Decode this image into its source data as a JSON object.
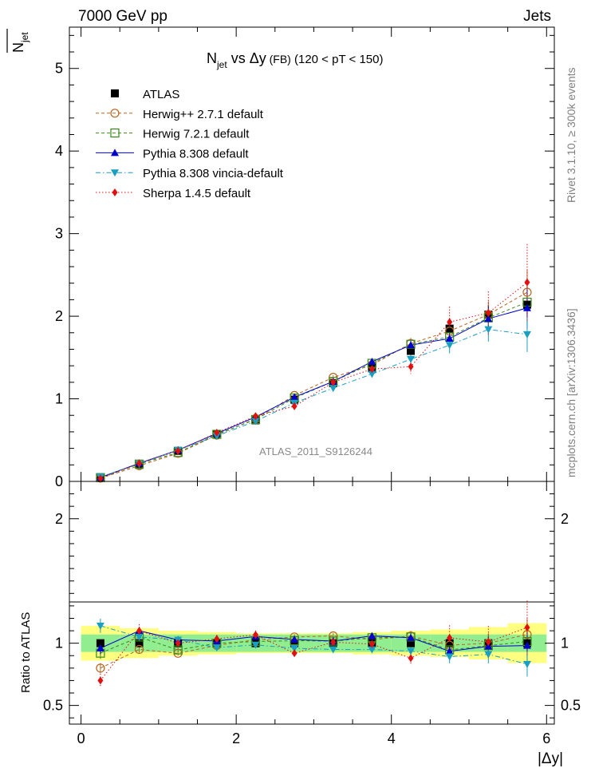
{
  "header": {
    "left": "7000 GeV pp",
    "right": "Jets"
  },
  "side_labels": {
    "rivet": "Rivet 3.1.10, ≥ 300k events",
    "mcplots": "mcplots.cern.ch [arXiv:1306.3436]"
  },
  "main_title": {
    "prefix": "N",
    "sub": "jet",
    "mid": " vs Δy",
    "small": " (FB)",
    "tail": " (120 < pT < 150)"
  },
  "ylabel_main": {
    "main": "N",
    "sub": "jet"
  },
  "ylabel_ratio": "Ratio to ATLAS",
  "xlabel": "|Δy|",
  "watermark": "ATLAS_2011_S9126244",
  "chart_data": {
    "type": "line",
    "x": [
      0.25,
      0.75,
      1.25,
      1.75,
      2.25,
      2.75,
      3.25,
      3.75,
      4.25,
      4.75,
      5.25,
      5.75
    ],
    "xlim": [
      -0.15,
      6.1
    ],
    "xticks": [
      0,
      2,
      4,
      6
    ],
    "main": {
      "ylim": [
        0,
        5.5
      ],
      "yticks": [
        0,
        1,
        2,
        3,
        4,
        5
      ]
    },
    "ratio": {
      "ylim": [
        0.35,
        2.3
      ],
      "yticks": [
        0.5,
        1,
        2
      ],
      "band_inner": 0.07,
      "band_outer": [
        0.14,
        0.12,
        0.1,
        0.09,
        0.08,
        0.08,
        0.08,
        0.09,
        0.1,
        0.11,
        0.13,
        0.16
      ]
    },
    "series": [
      {
        "name": "ATLAS",
        "legend": "ATLAS",
        "color": "#000000",
        "marker": "square-filled",
        "line": "none",
        "values": [
          0.05,
          0.2,
          0.37,
          0.57,
          0.74,
          0.99,
          1.19,
          1.37,
          1.58,
          1.85,
          2.02,
          2.14
        ]
      },
      {
        "name": "Herwig++ 2.7.1 default",
        "legend": "Herwig++ 2.7.1 default",
        "color": "#b8651e",
        "marker": "circle-open",
        "line": "dashed",
        "values": [
          0.04,
          0.19,
          0.34,
          0.56,
          0.76,
          1.04,
          1.26,
          1.41,
          1.67,
          1.82,
          2.02,
          2.29
        ]
      },
      {
        "name": "Herwig 7.2.1 default",
        "legend": "Herwig 7.2.1 default",
        "color": "#3a8a1b",
        "marker": "square-open",
        "line": "dashed",
        "values": [
          0.046,
          0.21,
          0.35,
          0.57,
          0.75,
          1.01,
          1.21,
          1.43,
          1.66,
          1.75,
          1.98,
          2.17
        ]
      },
      {
        "name": "Pythia 8.308 default",
        "legend": "Pythia 8.308 default",
        "color": "#0000cc",
        "marker": "triangle-up",
        "line": "solid",
        "values": [
          0.048,
          0.22,
          0.38,
          0.58,
          0.78,
          1.02,
          1.21,
          1.45,
          1.65,
          1.73,
          1.97,
          2.1
        ]
      },
      {
        "name": "Pythia 8.308 vincia-default",
        "legend": "Pythia 8.308 vincia-default",
        "color": "#1a9ec2",
        "marker": "triangle-down",
        "line": "dashdot",
        "values": [
          0.057,
          0.21,
          0.38,
          0.55,
          0.73,
          0.95,
          1.13,
          1.3,
          1.48,
          1.65,
          1.84,
          1.78
        ]
      },
      {
        "name": "Sherpa 1.4.5 default",
        "legend": "Sherpa 1.4.5 default",
        "color": "#e01010",
        "marker": "diamond",
        "line": "dotted",
        "values": [
          0.035,
          0.22,
          0.37,
          0.59,
          0.79,
          0.91,
          1.2,
          1.36,
          1.39,
          1.93,
          2.04,
          2.41
        ]
      }
    ]
  }
}
